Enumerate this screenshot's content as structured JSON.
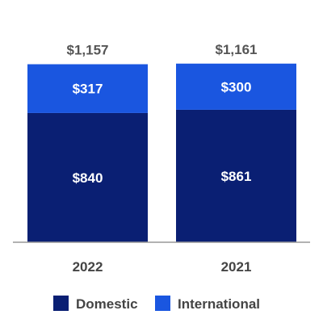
{
  "chart_data": {
    "type": "bar",
    "stacked": true,
    "categories": [
      "2022",
      "2021"
    ],
    "series": [
      {
        "name": "Domestic",
        "values": [
          840,
          861
        ],
        "labels": [
          "$840",
          "$861"
        ],
        "color": "#0a1f73"
      },
      {
        "name": "International",
        "values": [
          317,
          300
        ],
        "labels": [
          "$317",
          "$300"
        ],
        "color": "#1a56e0"
      }
    ],
    "totals": [
      1157,
      1161
    ],
    "total_labels": [
      "$1,157",
      "$1,161"
    ],
    "ylim": [
      0,
      1270
    ],
    "grid": false,
    "legend_position": "bottom",
    "title": "",
    "xlabel": "",
    "ylabel": ""
  },
  "colors": {
    "domestic": "#0a1f73",
    "international": "#1a56e0",
    "axis": "#999999",
    "text": "#444444"
  }
}
